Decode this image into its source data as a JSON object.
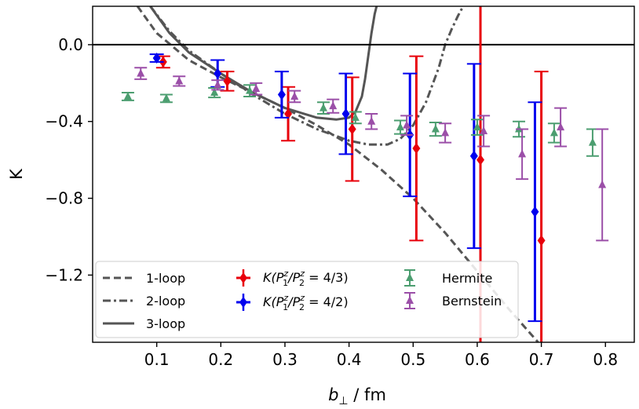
{
  "chart_data": {
    "type": "scatter",
    "xlabel": "b⊥ / fm",
    "ylabel": "K",
    "xlim": [
      0.0,
      0.845
    ],
    "ylim": [
      -1.55,
      0.2
    ],
    "x_ticks": [
      0.1,
      0.2,
      0.3,
      0.4,
      0.5,
      0.6,
      0.7,
      0.8
    ],
    "x_tick_labels": [
      "0.1",
      "0.2",
      "0.3",
      "0.4",
      "0.5",
      "0.6",
      "0.7",
      "0.8"
    ],
    "y_ticks": [
      0.0,
      -0.4,
      -0.8,
      -1.2
    ],
    "y_tick_labels": [
      "0.0",
      "−0.4",
      "−0.8",
      "−1.2"
    ],
    "grid": false,
    "reference_lines": [
      {
        "y": 0.0,
        "color": "#000000"
      }
    ],
    "legend_position": "bottom",
    "legend": {
      "loop1": "1-loop",
      "loop2": "2-loop",
      "loop3": "3-loop",
      "ratio43_main": "K(P",
      "ratio43_mid": "/P",
      "ratio43_tail": " = 4/3)",
      "ratio42_main": "K(P",
      "ratio42_mid": "/P",
      "ratio42_tail": " = 4/2)",
      "sup_z": "z",
      "sub_1": "1",
      "sub_2": "2",
      "hermite": "Hermite",
      "bernstein": "Bernstein"
    },
    "curves": [
      {
        "name": "1-loop",
        "style": "dashed",
        "color": "#555555",
        "x": [
          0.07,
          0.1,
          0.15,
          0.2,
          0.25,
          0.3,
          0.35,
          0.4,
          0.45,
          0.5,
          0.55,
          0.6,
          0.65,
          0.695
        ],
        "y": [
          0.2,
          0.06,
          -0.08,
          -0.17,
          -0.25,
          -0.33,
          -0.42,
          -0.52,
          -0.65,
          -0.8,
          -0.98,
          -1.18,
          -1.38,
          -1.55
        ]
      },
      {
        "name": "2-loop",
        "style": "dashdot",
        "color": "#555555",
        "x": [
          0.09,
          0.12,
          0.15,
          0.2,
          0.25,
          0.3,
          0.35,
          0.4,
          0.43,
          0.46,
          0.48,
          0.5,
          0.52,
          0.54,
          0.55,
          0.56,
          0.57,
          0.578
        ],
        "y": [
          0.2,
          0.07,
          -0.03,
          -0.15,
          -0.26,
          -0.36,
          -0.44,
          -0.5,
          -0.52,
          -0.52,
          -0.49,
          -0.42,
          -0.3,
          -0.12,
          0.0,
          0.08,
          0.15,
          0.2
        ],
        "clip_to_axes": true
      },
      {
        "name": "3-loop",
        "style": "solid",
        "color": "#555555",
        "x": [
          0.09,
          0.12,
          0.15,
          0.2,
          0.25,
          0.3,
          0.35,
          0.38,
          0.4,
          0.41,
          0.42,
          0.425,
          0.43,
          0.435,
          0.44,
          0.443
        ],
        "y": [
          0.2,
          0.06,
          -0.04,
          -0.15,
          -0.25,
          -0.33,
          -0.38,
          -0.39,
          -0.38,
          -0.35,
          -0.27,
          -0.18,
          -0.06,
          0.06,
          0.16,
          0.2
        ]
      }
    ],
    "series": [
      {
        "name": "K(P1z/P2z = 4/3)",
        "color": "#e8000b",
        "marker": "diamond",
        "points": [
          {
            "x": 0.11,
            "y": -0.09,
            "yerr": 0.03
          },
          {
            "x": 0.21,
            "y": -0.19,
            "yerr": 0.05
          },
          {
            "x": 0.305,
            "y": -0.36,
            "yerr": 0.14
          },
          {
            "x": 0.405,
            "y": -0.44,
            "yerr": 0.27
          },
          {
            "x": 0.505,
            "y": -0.54,
            "yerr": 0.48
          },
          {
            "x": 0.605,
            "y": -0.6,
            "yerr": 1.2
          },
          {
            "x": 0.7,
            "y": -1.02,
            "yerr": 0.88
          }
        ]
      },
      {
        "name": "K(P1z/P2z = 4/2)",
        "color": "#0000ee",
        "marker": "diamond",
        "points": [
          {
            "x": 0.1,
            "y": -0.07,
            "yerr": 0.02
          },
          {
            "x": 0.195,
            "y": -0.15,
            "yerr": 0.07
          },
          {
            "x": 0.295,
            "y": -0.26,
            "yerr": 0.12
          },
          {
            "x": 0.395,
            "y": -0.36,
            "yerr": 0.21
          },
          {
            "x": 0.495,
            "y": -0.47,
            "yerr": 0.32
          },
          {
            "x": 0.595,
            "y": -0.58,
            "yerr": 0.48
          },
          {
            "x": 0.69,
            "y": -0.87,
            "yerr": 0.57
          }
        ]
      },
      {
        "name": "Hermite",
        "color": "#4c9e70",
        "marker": "triangle",
        "points": [
          {
            "x": 0.055,
            "y": -0.27,
            "yerr": 0.02
          },
          {
            "x": 0.115,
            "y": -0.28,
            "yerr": 0.02
          },
          {
            "x": 0.19,
            "y": -0.25,
            "yerr": 0.025
          },
          {
            "x": 0.245,
            "y": -0.24,
            "yerr": 0.03
          },
          {
            "x": 0.36,
            "y": -0.33,
            "yerr": 0.03
          },
          {
            "x": 0.41,
            "y": -0.38,
            "yerr": 0.03
          },
          {
            "x": 0.48,
            "y": -0.43,
            "yerr": 0.035
          },
          {
            "x": 0.535,
            "y": -0.44,
            "yerr": 0.035
          },
          {
            "x": 0.6,
            "y": -0.43,
            "yerr": 0.04
          },
          {
            "x": 0.665,
            "y": -0.44,
            "yerr": 0.04
          },
          {
            "x": 0.72,
            "y": -0.46,
            "yerr": 0.05
          },
          {
            "x": 0.78,
            "y": -0.51,
            "yerr": 0.07
          }
        ]
      },
      {
        "name": "Bernstein",
        "color": "#9b4fa8",
        "marker": "triangle",
        "points": [
          {
            "x": 0.075,
            "y": -0.15,
            "yerr": 0.03
          },
          {
            "x": 0.135,
            "y": -0.19,
            "yerr": 0.025
          },
          {
            "x": 0.195,
            "y": -0.21,
            "yerr": 0.025
          },
          {
            "x": 0.255,
            "y": -0.23,
            "yerr": 0.03
          },
          {
            "x": 0.315,
            "y": -0.27,
            "yerr": 0.03
          },
          {
            "x": 0.375,
            "y": -0.32,
            "yerr": 0.035
          },
          {
            "x": 0.435,
            "y": -0.4,
            "yerr": 0.04
          },
          {
            "x": 0.49,
            "y": -0.42,
            "yerr": 0.05
          },
          {
            "x": 0.55,
            "y": -0.46,
            "yerr": 0.05
          },
          {
            "x": 0.61,
            "y": -0.45,
            "yerr": 0.08
          },
          {
            "x": 0.67,
            "y": -0.57,
            "yerr": 0.13
          },
          {
            "x": 0.73,
            "y": -0.43,
            "yerr": 0.1
          },
          {
            "x": 0.795,
            "y": -0.73,
            "yerr": 0.29
          }
        ]
      }
    ]
  }
}
